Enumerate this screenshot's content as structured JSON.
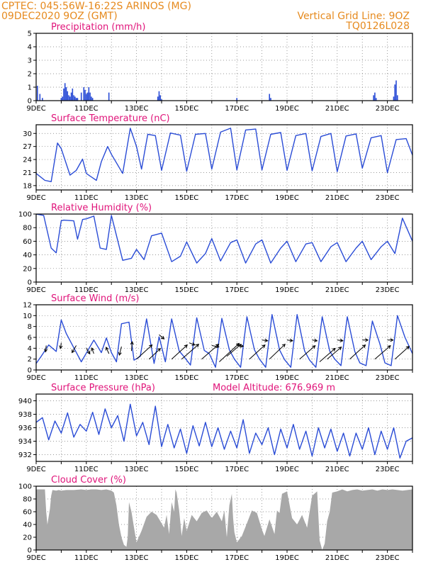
{
  "header": {
    "line1": "CPTEC:   045:56W-16:22S  ARINOS (MG)",
    "line2": "09DEC2020 9OZ (GMT)",
    "grid_note": "Vertical Grid Line: 9OZ",
    "run_code": "TQ0126L028"
  },
  "x_ticks": [
    "9DEC",
    "11DEC",
    "13DEC",
    "15DEC",
    "17DEC",
    "19DEC",
    "21DEC",
    "23DEC"
  ],
  "x_tick_day": [
    0,
    2,
    4,
    6,
    8,
    10,
    12,
    14
  ],
  "axis_color": "#2a4cd6",
  "fill_color": "#a8a8a8",
  "chart_data": [
    {
      "type": "bar",
      "title": "Precipitation (mm/h)",
      "ylim": [
        0,
        5
      ],
      "yticks": [
        "0",
        "1",
        "2",
        "3",
        "4",
        "5"
      ],
      "x_units": "days since 9DEC",
      "series": [
        {
          "x": [
            0.05,
            0.15,
            0.25,
            1.0,
            1.05,
            1.1,
            1.15,
            1.2,
            1.25,
            1.3,
            1.35,
            1.4,
            1.45,
            1.5,
            1.55,
            1.6,
            1.65,
            1.8,
            1.9,
            1.95,
            2.0,
            2.05,
            2.1,
            2.15,
            2.2,
            2.25,
            2.9,
            4.85,
            4.9,
            4.95,
            5.0,
            8.0,
            9.3,
            9.35,
            13.45,
            13.5,
            13.55,
            14.25,
            14.3,
            14.35,
            14.4
          ],
          "values": [
            1.1,
            0.5,
            0.2,
            0.2,
            0.3,
            0.9,
            1.3,
            1.0,
            0.7,
            0.4,
            0.3,
            0.6,
            0.9,
            0.4,
            0.3,
            0.2,
            0.2,
            0.6,
            1.0,
            0.8,
            0.5,
            0.6,
            1.0,
            0.6,
            0.3,
            0.2,
            0.6,
            0.3,
            0.7,
            0.4,
            0.1,
            0.2,
            0.5,
            0.2,
            0.4,
            0.6,
            0.2,
            0.3,
            1.2,
            1.5,
            0.4
          ]
        }
      ]
    },
    {
      "type": "line",
      "title": "Surface Temperature (nC)",
      "ylim": [
        17,
        32
      ],
      "yticks": [
        "18",
        "21",
        "24",
        "27",
        "30"
      ],
      "x_units": "days since 9DEC",
      "series": [
        {
          "x": [
            0,
            0.35,
            0.6,
            0.85,
            1.0,
            1.35,
            1.6,
            1.85,
            2.0,
            2.15,
            2.4,
            2.6,
            2.85,
            3.0,
            3.45,
            3.75,
            4.0,
            4.2,
            4.45,
            4.75,
            5.0,
            5.35,
            5.75,
            6.0,
            6.35,
            6.75,
            7.0,
            7.35,
            7.75,
            8.0,
            8.35,
            8.75,
            9.0,
            9.35,
            9.75,
            10.0,
            10.35,
            10.75,
            11.0,
            11.35,
            11.75,
            12.0,
            12.35,
            12.75,
            13.0,
            13.35,
            13.75,
            14.0,
            14.35,
            14.75,
            15.0
          ],
          "values": [
            20.8,
            19.2,
            18.9,
            27.8,
            26.5,
            20.4,
            21.5,
            24.1,
            20.8,
            20.2,
            19.2,
            23.5,
            27.0,
            25.2,
            20.8,
            31.2,
            27.0,
            21.8,
            29.8,
            29.5,
            21.5,
            30.1,
            29.6,
            21.3,
            29.8,
            30.0,
            21.8,
            30.3,
            31.2,
            21.6,
            30.8,
            31.0,
            21.6,
            29.8,
            30.2,
            21.5,
            29.5,
            30.0,
            21.4,
            29.3,
            30.0,
            21.2,
            29.4,
            29.9,
            22.0,
            29.0,
            29.5,
            21.0,
            28.6,
            28.8,
            25.0
          ]
        }
      ]
    },
    {
      "type": "line",
      "title": "Relative Humidity (%)",
      "ylim": [
        0,
        100
      ],
      "yticks": [
        "0",
        "20",
        "40",
        "60",
        "80",
        "100"
      ],
      "x_units": "days since 9DEC",
      "series": [
        {
          "x": [
            0,
            0.3,
            0.6,
            0.8,
            1.0,
            1.1,
            1.5,
            1.65,
            1.85,
            2.0,
            2.3,
            2.55,
            2.8,
            3.0,
            3.45,
            3.8,
            4.0,
            4.3,
            4.6,
            5.0,
            5.4,
            5.75,
            6.0,
            6.4,
            6.75,
            7.0,
            7.35,
            7.75,
            8.0,
            8.35,
            8.75,
            9.0,
            9.35,
            9.75,
            10.0,
            10.35,
            10.75,
            11.0,
            11.35,
            11.75,
            12.0,
            12.35,
            12.75,
            13.0,
            13.35,
            13.75,
            14.0,
            14.3,
            14.6,
            15.0
          ],
          "values": [
            100,
            98,
            50,
            43,
            90,
            91,
            90,
            63,
            92,
            93,
            97,
            50,
            48,
            98,
            32,
            35,
            48,
            33,
            68,
            72,
            30,
            38,
            59,
            28,
            42,
            64,
            31,
            58,
            62,
            28,
            56,
            62,
            28,
            50,
            60,
            30,
            56,
            58,
            30,
            52,
            58,
            30,
            50,
            60,
            33,
            52,
            60,
            42,
            94,
            60
          ]
        }
      ]
    },
    {
      "type": "line",
      "title": "Surface Wind (m/s)",
      "ylim": [
        0,
        12
      ],
      "yticks": [
        "0",
        "2",
        "4",
        "6",
        "8",
        "10",
        "12"
      ],
      "x_units": "days since 9DEC",
      "series": [
        {
          "x": [
            0,
            0.2,
            0.5,
            0.8,
            1.0,
            1.2,
            1.5,
            1.8,
            2.0,
            2.3,
            2.6,
            2.8,
            3.0,
            3.2,
            3.4,
            3.7,
            3.9,
            4.15,
            4.4,
            4.7,
            4.9,
            5.15,
            5.4,
            5.7,
            5.9,
            6.15,
            6.4,
            6.7,
            6.9,
            7.15,
            7.4,
            7.7,
            7.9,
            8.15,
            8.4,
            8.7,
            8.9,
            9.15,
            9.4,
            9.7,
            9.9,
            10.15,
            10.4,
            10.7,
            10.9,
            11.15,
            11.4,
            11.7,
            11.9,
            12.15,
            12.4,
            12.7,
            12.9,
            13.15,
            13.4,
            13.7,
            13.9,
            14.15,
            14.4,
            14.7,
            15.0
          ],
          "values": [
            1.2,
            2.5,
            4.6,
            3.4,
            9.2,
            6.7,
            4.1,
            1.5,
            3.1,
            5.5,
            3.2,
            5.9,
            3.2,
            1.5,
            8.5,
            8.8,
            1.8,
            2.5,
            9.4,
            1.2,
            6.1,
            1.5,
            9.4,
            3.5,
            2.4,
            0.9,
            9.6,
            3.6,
            3.0,
            0.5,
            9.5,
            3.7,
            2.0,
            0.5,
            9.8,
            3.7,
            2.0,
            0.5,
            10.2,
            3.7,
            1.9,
            0.5,
            10.2,
            3.5,
            1.8,
            0.5,
            9.8,
            3.5,
            2.0,
            0.8,
            9.8,
            3.4,
            1.3,
            0.8,
            9.0,
            4.8,
            1.3,
            0.8,
            10.0,
            6.0,
            3.0
          ]
        }
      ],
      "wind_barbs": [
        {
          "x": 0.4,
          "y": 4.5,
          "dx": -1,
          "dy": 9
        },
        {
          "x": 1.0,
          "y": 5.0,
          "dx": -1,
          "dy": 8
        },
        {
          "x": 1.6,
          "y": 4.5,
          "dx": -6,
          "dy": 10
        },
        {
          "x": 2.0,
          "y": 4.0,
          "dx": 5,
          "dy": 8
        },
        {
          "x": 2.3,
          "y": 3.0,
          "dx": -3,
          "dy": -8
        },
        {
          "x": 2.9,
          "y": 3.0,
          "dx": -4,
          "dy": -9
        },
        {
          "x": 3.4,
          "y": 4.3,
          "dx": -3,
          "dy": 12
        },
        {
          "x": 3.8,
          "y": 3.5,
          "dx": 1,
          "dy": -13
        },
        {
          "x": 4.0,
          "y": 2.0,
          "dx": 22,
          "dy": -20
        },
        {
          "x": 4.5,
          "y": 2.0,
          "dx": 16,
          "dy": -15
        },
        {
          "x": 4.9,
          "y": 6.5,
          "dx": 7,
          "dy": 6
        },
        {
          "x": 5.4,
          "y": 2.0,
          "dx": 22,
          "dy": -20
        },
        {
          "x": 5.8,
          "y": 2.0,
          "dx": 24,
          "dy": -21
        },
        {
          "x": 6.1,
          "y": 5.0,
          "dx": 8,
          "dy": 3
        },
        {
          "x": 6.6,
          "y": 2.0,
          "dx": 24,
          "dy": -21
        },
        {
          "x": 7.0,
          "y": 4.5,
          "dx": 10,
          "dy": 2
        },
        {
          "x": 7.3,
          "y": 1.5,
          "dx": 28,
          "dy": -26
        },
        {
          "x": 7.6,
          "y": 2.5,
          "dx": 20,
          "dy": -17
        },
        {
          "x": 8.0,
          "y": 4.5,
          "dx": 9,
          "dy": 1
        },
        {
          "x": 8.5,
          "y": 2.0,
          "dx": 22,
          "dy": -20
        },
        {
          "x": 9.0,
          "y": 5.5,
          "dx": 8,
          "dy": 1
        },
        {
          "x": 9.3,
          "y": 2.0,
          "dx": 22,
          "dy": -21
        },
        {
          "x": 10.0,
          "y": 5.5,
          "dx": 8,
          "dy": 1
        },
        {
          "x": 10.5,
          "y": 2.0,
          "dx": 22,
          "dy": -19
        },
        {
          "x": 11.0,
          "y": 5.5,
          "dx": 7,
          "dy": 1
        },
        {
          "x": 11.3,
          "y": 1.5,
          "dx": 22,
          "dy": -19
        },
        {
          "x": 11.6,
          "y": 2.0,
          "dx": 20,
          "dy": -17
        },
        {
          "x": 12.0,
          "y": 5.5,
          "dx": 8,
          "dy": 1
        },
        {
          "x": 12.5,
          "y": 2.0,
          "dx": 22,
          "dy": -20
        },
        {
          "x": 13.0,
          "y": 5.5,
          "dx": 8,
          "dy": 0
        },
        {
          "x": 13.5,
          "y": 2.0,
          "dx": 22,
          "dy": -19
        },
        {
          "x": 14.0,
          "y": 5.5,
          "dx": 8,
          "dy": 0
        },
        {
          "x": 14.3,
          "y": 2.0,
          "dx": 20,
          "dy": -18
        }
      ]
    },
    {
      "type": "line",
      "title": "Surface Pressure (hPa)",
      "subtitle": "Model Altitude: 676.969  m",
      "ylim": [
        931,
        941
      ],
      "yticks": [
        "932",
        "934",
        "936",
        "938",
        "940"
      ],
      "x_units": "days since 9DEC",
      "series": [
        {
          "x": [
            0,
            0.25,
            0.5,
            0.75,
            1.0,
            1.25,
            1.5,
            1.75,
            2.0,
            2.25,
            2.5,
            2.75,
            3.0,
            3.25,
            3.5,
            3.75,
            4.0,
            4.25,
            4.5,
            4.75,
            5.0,
            5.25,
            5.5,
            5.75,
            6.0,
            6.25,
            6.5,
            6.75,
            7.0,
            7.25,
            7.5,
            7.75,
            8.0,
            8.25,
            8.5,
            8.75,
            9.0,
            9.25,
            9.5,
            9.75,
            10.0,
            10.25,
            10.5,
            10.75,
            11.0,
            11.25,
            11.5,
            11.75,
            12.0,
            12.25,
            12.5,
            12.75,
            13.0,
            13.25,
            13.5,
            13.75,
            14.0,
            14.25,
            14.5,
            14.75,
            15.0
          ],
          "values": [
            936.8,
            937.5,
            934.2,
            937.0,
            935.2,
            938.2,
            934.6,
            936.5,
            935.5,
            938.3,
            935.0,
            938.8,
            936.0,
            937.8,
            934.0,
            939.5,
            934.8,
            936.8,
            933.5,
            939.2,
            933.2,
            936.5,
            933.0,
            935.8,
            932.2,
            936.3,
            933.3,
            936.8,
            933.2,
            936.0,
            932.8,
            935.5,
            933.0,
            937.2,
            932.2,
            935.2,
            933.5,
            936.0,
            932.0,
            935.8,
            933.0,
            936.5,
            932.8,
            935.5,
            931.8,
            936.0,
            933.0,
            935.8,
            932.5,
            935.2,
            931.8,
            935.2,
            932.8,
            936.0,
            932.0,
            935.5,
            932.8,
            936.0,
            931.5,
            934.0,
            934.5
          ]
        }
      ]
    },
    {
      "type": "area",
      "title": "Cloud Cover (%)",
      "ylim": [
        0,
        100
      ],
      "yticks": [
        "0",
        "20",
        "40",
        "60",
        "80",
        "100"
      ],
      "x_units": "days since 9DEC",
      "series": [
        {
          "x": [
            0,
            0.35,
            0.4,
            0.45,
            0.55,
            0.6,
            0.65,
            0.8,
            0.9,
            1.0,
            1.2,
            1.5,
            1.8,
            2.0,
            2.2,
            2.4,
            2.6,
            2.8,
            3.0,
            3.1,
            3.2,
            3.3,
            3.4,
            3.5,
            3.6,
            3.65,
            3.7,
            3.8,
            3.9,
            4.0,
            4.2,
            4.4,
            4.6,
            4.8,
            5.0,
            5.1,
            5.2,
            5.3,
            5.4,
            5.5,
            5.55,
            5.6,
            5.7,
            5.8,
            5.9,
            6.0,
            6.2,
            6.4,
            6.6,
            6.8,
            7.0,
            7.2,
            7.4,
            7.5,
            7.6,
            7.7,
            7.8,
            7.85,
            7.9,
            8.0,
            8.2,
            8.4,
            8.6,
            8.8,
            9.0,
            9.1,
            9.3,
            9.5,
            9.6,
            9.7,
            9.8,
            10.0,
            10.2,
            10.4,
            10.6,
            10.8,
            11.0,
            11.2,
            11.3,
            11.4,
            11.5,
            11.6,
            11.7,
            11.8,
            12.0,
            12.2,
            12.4,
            12.6,
            12.8,
            13.0,
            13.2,
            13.4,
            13.6,
            13.8,
            14.0,
            14.2,
            14.4,
            14.6,
            14.8,
            15.0
          ],
          "values": [
            95,
            95,
            60,
            40,
            65,
            85,
            94,
            93,
            94,
            93,
            94,
            94,
            95,
            94,
            95,
            95,
            94,
            95,
            93,
            90,
            70,
            40,
            20,
            8,
            5,
            20,
            75,
            60,
            35,
            12,
            30,
            52,
            60,
            55,
            42,
            35,
            55,
            25,
            75,
            60,
            95,
            90,
            62,
            22,
            50,
            30,
            55,
            45,
            58,
            62,
            50,
            60,
            45,
            62,
            20,
            70,
            88,
            50,
            28,
            12,
            22,
            42,
            62,
            58,
            32,
            22,
            48,
            25,
            62,
            58,
            88,
            92,
            50,
            40,
            55,
            35,
            85,
            92,
            15,
            0,
            10,
            45,
            60,
            90,
            92,
            95,
            92,
            94,
            95,
            93,
            94,
            95,
            93,
            95,
            94,
            95,
            94,
            93,
            94,
            95
          ]
        }
      ]
    }
  ]
}
